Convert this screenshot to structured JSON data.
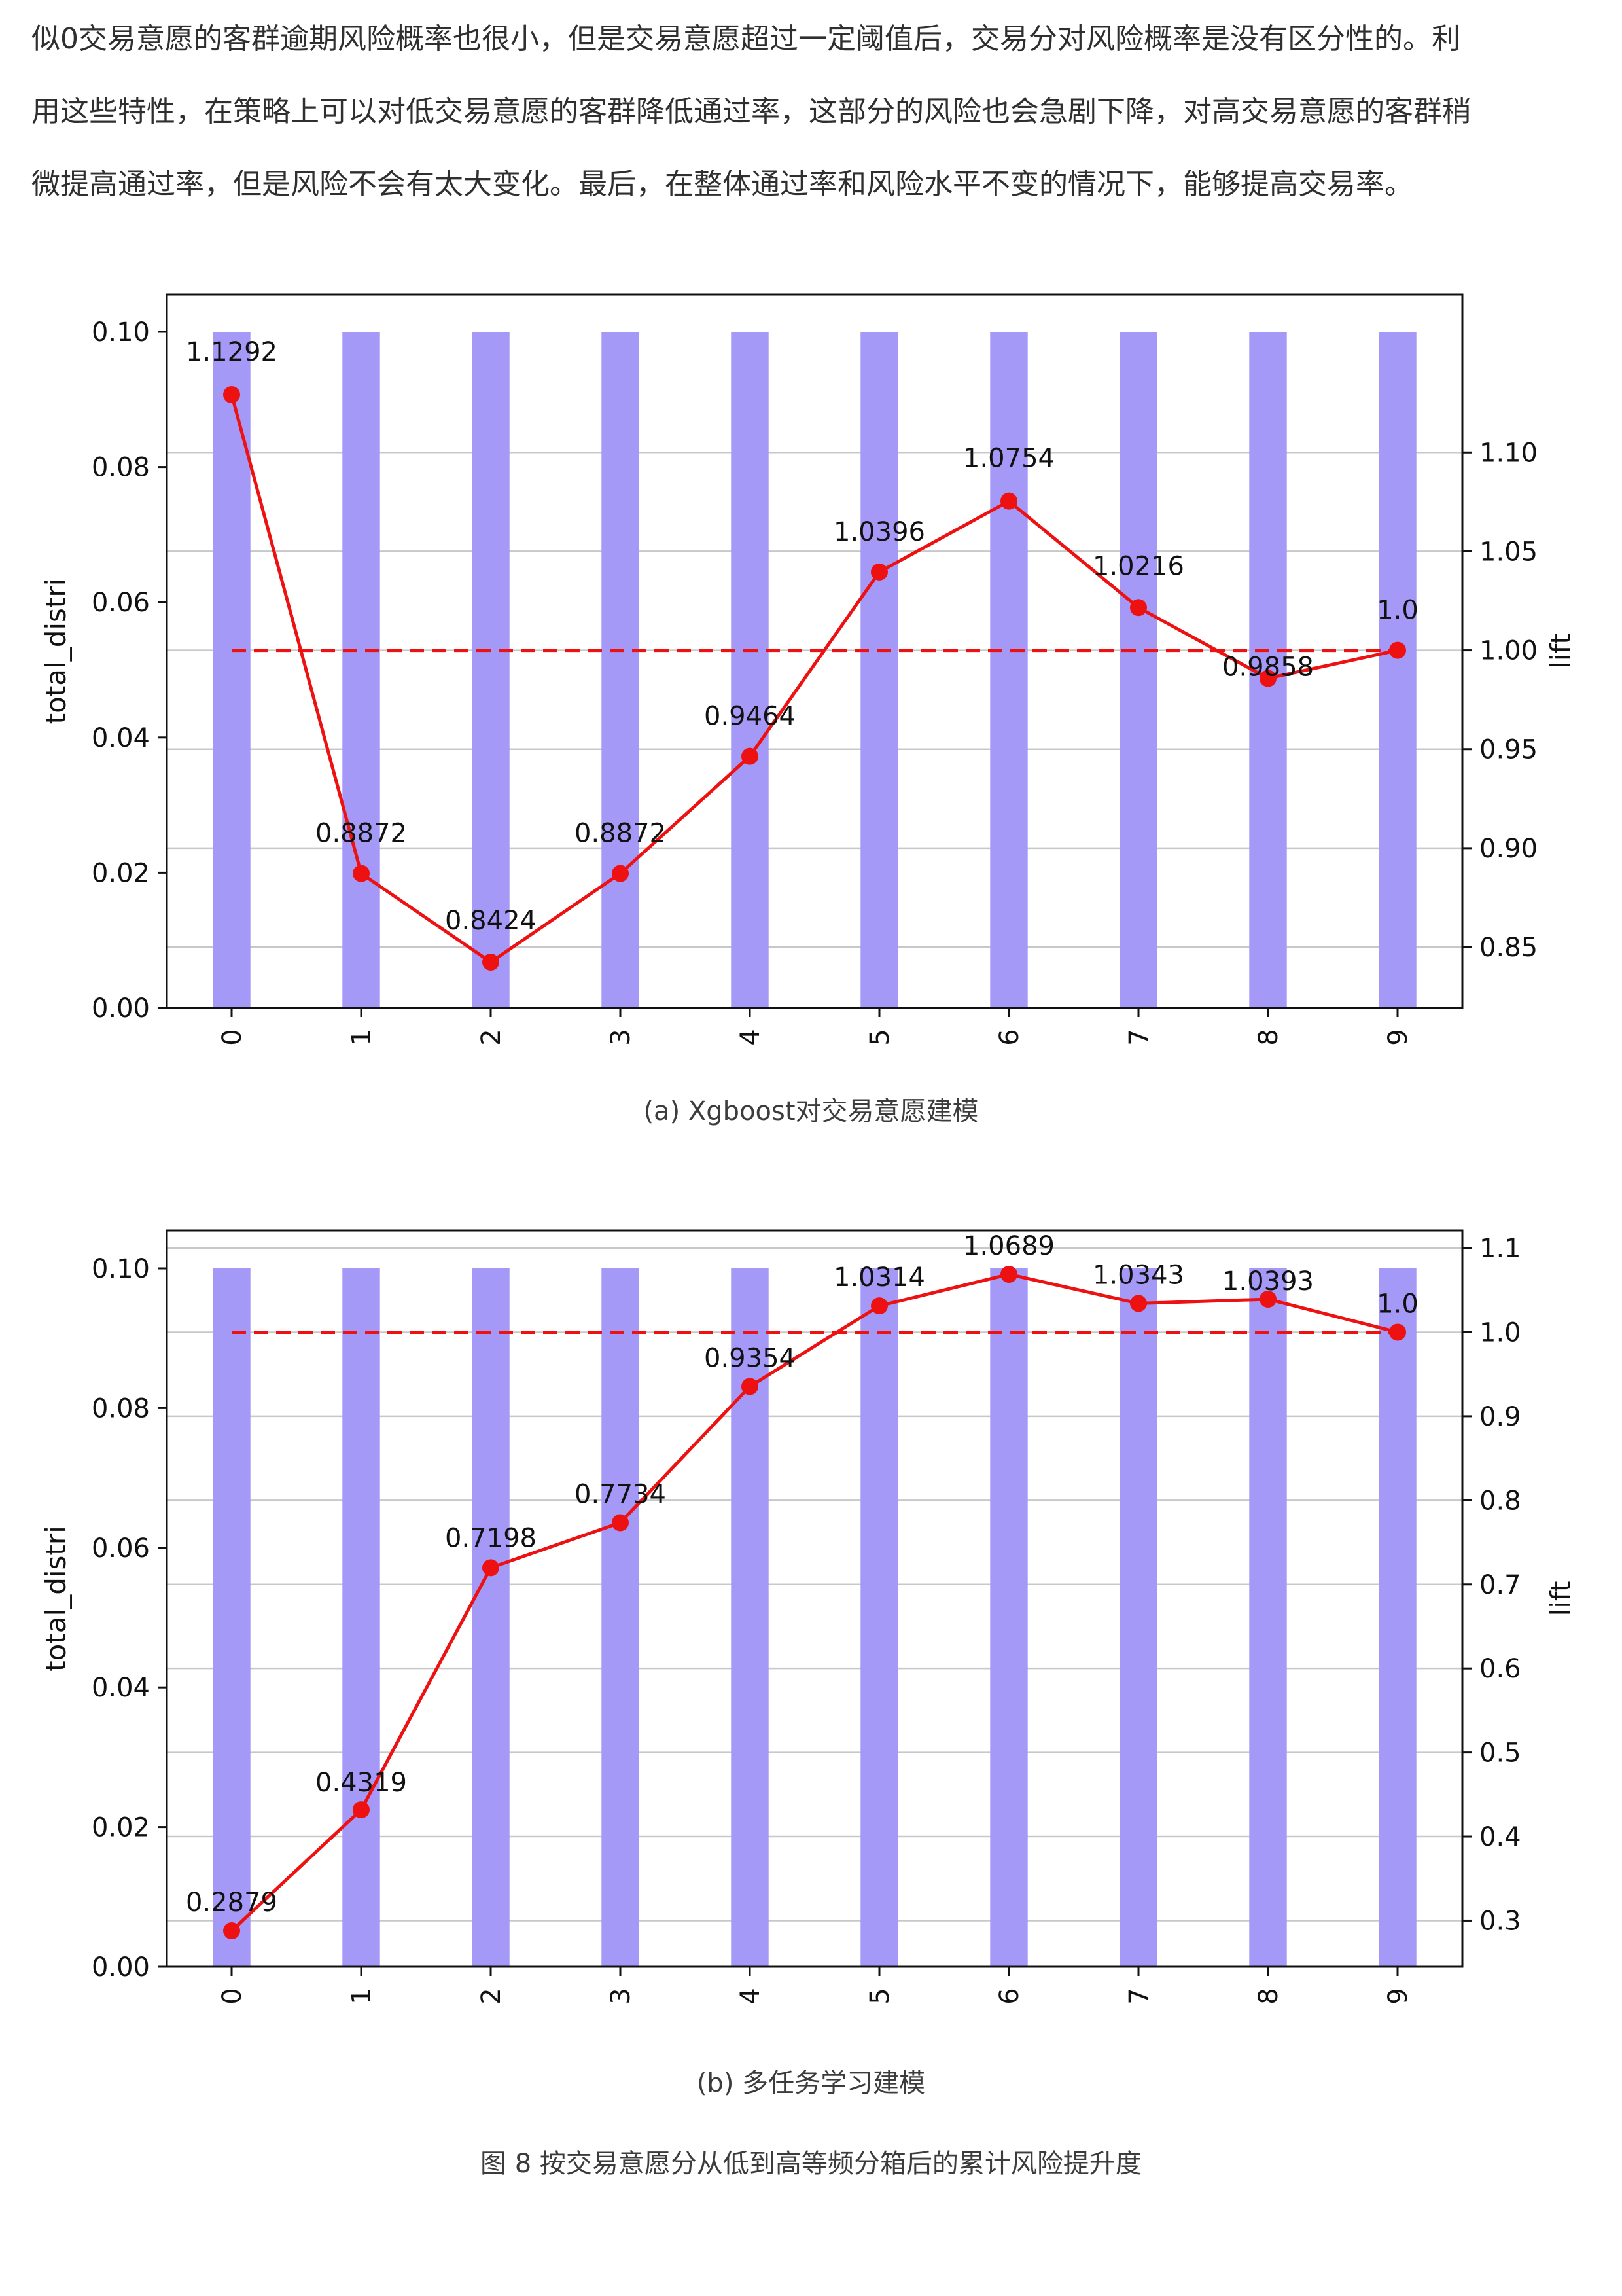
{
  "intro": {
    "lines": [
      "似0交易意愿的客群逾期风险概率也很小，但是交易意愿超过一定阈值后，交易分对风险概率是没有区分性的。利",
      "用这些特性，在策略上可以对低交易意愿的客群降低通过率，这部分的风险也会急剧下降，对高交易意愿的客群稍",
      "微提高通过率，但是风险不会有太大变化。最后，在整体通过率和风险水平不变的情况下，能够提高交易率。"
    ]
  },
  "chart_data": [
    {
      "type": "bar+line",
      "caption": "(a) Xgboost对交易意愿建模",
      "categories": [
        "0",
        "1",
        "2",
        "3",
        "4",
        "5",
        "6",
        "7",
        "8",
        "9"
      ],
      "bar_values": [
        0.1,
        0.1,
        0.1,
        0.1,
        0.1,
        0.1,
        0.1,
        0.1,
        0.1,
        0.1
      ],
      "lift_values": [
        1.1292,
        0.8872,
        0.8424,
        0.8872,
        0.9464,
        1.0396,
        1.0754,
        1.0216,
        0.9858,
        1.0
      ],
      "lift_labels": [
        "1.1292",
        "0.8872",
        "0.8424",
        "0.8872",
        "0.9464",
        "1.0396",
        "1.0754",
        "1.0216",
        "0.9858",
        "1.0"
      ],
      "reference_line": 1.0,
      "ylabel_left": "total_distri",
      "ylabel_right": "lift",
      "left_ticks": [
        0.0,
        0.02,
        0.04,
        0.06,
        0.08,
        0.1
      ],
      "left_tick_labels": [
        "0.00",
        "0.02",
        "0.04",
        "0.06",
        "0.08",
        "0.10"
      ],
      "right_ticks": [
        0.85,
        0.9,
        0.95,
        1.0,
        1.05,
        1.1
      ],
      "right_tick_labels": [
        "0.85",
        "0.90",
        "0.95",
        "1.00",
        "1.05",
        "1.10"
      ],
      "ylim_left": [
        0,
        0.1
      ],
      "ylim_right": [
        0.8424,
        1.1292
      ],
      "grid": "horizontal (right axis)",
      "colors": {
        "bar": "#a599f7",
        "line": "#ee1111",
        "grid": "#c8c8c8"
      }
    },
    {
      "type": "bar+line",
      "caption": "(b) 多任务学习建模",
      "categories": [
        "0",
        "1",
        "2",
        "3",
        "4",
        "5",
        "6",
        "7",
        "8",
        "9"
      ],
      "bar_values": [
        0.1,
        0.1,
        0.1,
        0.1,
        0.1,
        0.1,
        0.1,
        0.1,
        0.1,
        0.1
      ],
      "lift_values": [
        0.2879,
        0.4319,
        0.7198,
        0.7734,
        0.9354,
        1.0314,
        1.0689,
        1.0343,
        1.0393,
        1.0
      ],
      "lift_labels": [
        "0.2879",
        "0.4319",
        "0.7198",
        "0.7734",
        "0.9354",
        "1.0314",
        "1.0689",
        "1.0343",
        "1.0393",
        "1.0"
      ],
      "reference_line": 1.0,
      "ylabel_left": "total_distri",
      "ylabel_right": "lift",
      "left_ticks": [
        0.0,
        0.02,
        0.04,
        0.06,
        0.08,
        0.1
      ],
      "left_tick_labels": [
        "0.00",
        "0.02",
        "0.04",
        "0.06",
        "0.08",
        "0.10"
      ],
      "right_ticks": [
        0.3,
        0.4,
        0.5,
        0.6,
        0.7,
        0.8,
        0.9,
        1.0,
        1.1
      ],
      "right_tick_labels": [
        "0.3",
        "0.4",
        "0.5",
        "0.6",
        "0.7",
        "0.8",
        "0.9",
        "1.0",
        "1.1"
      ],
      "ylim_left": [
        0,
        0.1
      ],
      "ylim_right": [
        0.2879,
        1.0689
      ],
      "grid": "horizontal (right axis)",
      "colors": {
        "bar": "#a599f7",
        "line": "#ee1111",
        "grid": "#c8c8c8"
      }
    }
  ],
  "figure_caption": "图 8   按交易意愿分从低到高等频分箱后的累计风险提升度"
}
